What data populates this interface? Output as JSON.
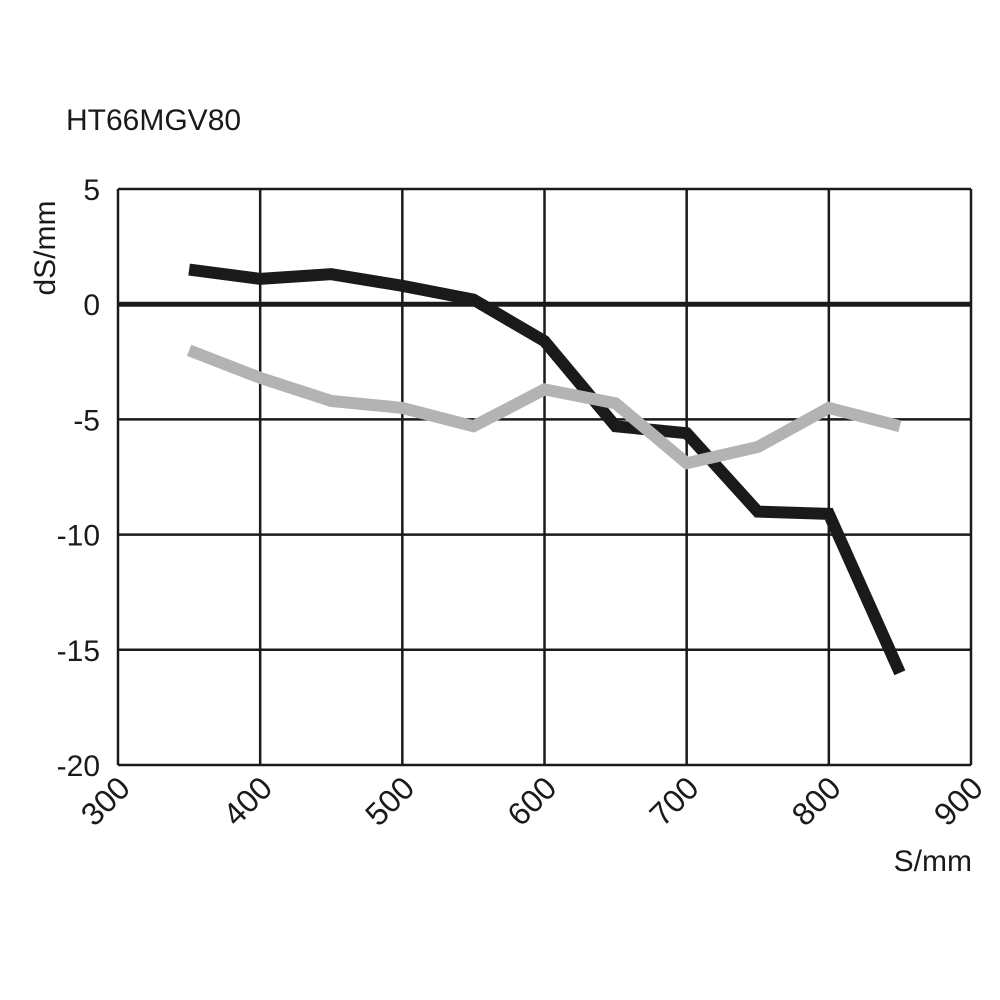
{
  "chart_data": {
    "type": "line",
    "title": "HT66MGV80",
    "xlabel": "S/mm",
    "ylabel": "dS/mm",
    "xlim": [
      300,
      900
    ],
    "ylim": [
      -20,
      5
    ],
    "xticks": [
      "300",
      "400",
      "500",
      "600",
      "700",
      "800",
      "900"
    ],
    "yticks": [
      "5",
      "0",
      "-5",
      "-10",
      "-15",
      "-20"
    ],
    "grid": true,
    "legend": "none",
    "series": [
      {
        "color": "#1a1a1a",
        "x": [
          350,
          400,
          450,
          500,
          550,
          600,
          650,
          700,
          750,
          800,
          850
        ],
        "y": [
          1.5,
          1.1,
          1.3,
          0.8,
          0.2,
          -1.6,
          -5.3,
          -5.6,
          -9.0,
          -9.1,
          -16.0
        ]
      },
      {
        "color": "#b3b3b3",
        "x": [
          350,
          400,
          450,
          500,
          550,
          600,
          650,
          700,
          750,
          800,
          850
        ],
        "y": [
          -2.0,
          -3.2,
          -4.2,
          -4.5,
          -5.3,
          -3.7,
          -4.3,
          -6.9,
          -6.2,
          -4.5,
          -5.3
        ]
      }
    ]
  }
}
